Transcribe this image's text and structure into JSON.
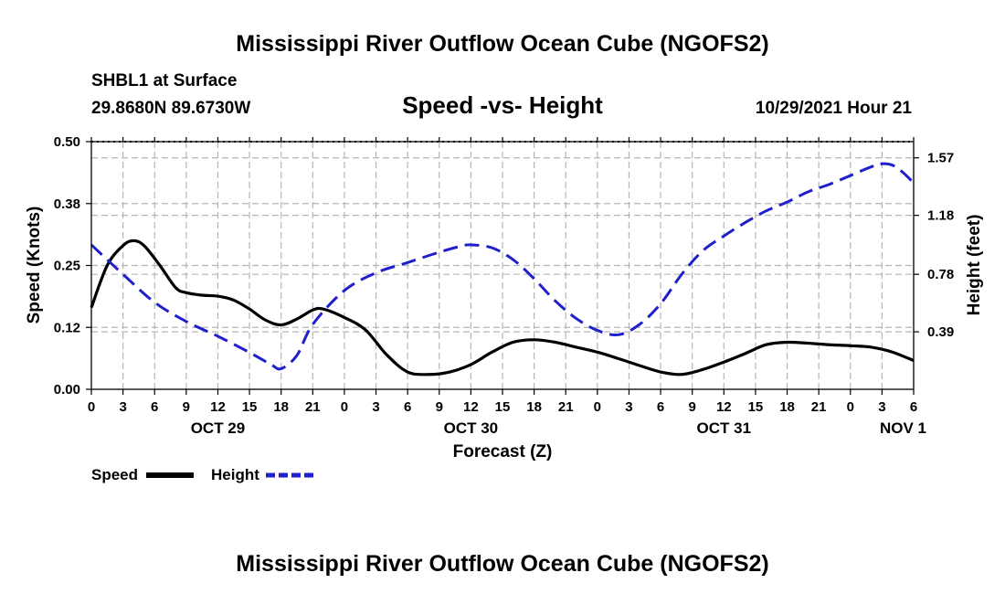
{
  "header": {
    "title": "Mississippi River Outflow Ocean Cube (NGOFS2)",
    "station": "SHBL1 at Surface",
    "coords": "29.8680N  89.6730W",
    "subtitle": "Speed -vs- Height",
    "datetime": "10/29/2021 Hour 21"
  },
  "footer": {
    "title": "Mississippi River Outflow Ocean Cube (NGOFS2)"
  },
  "chart_data": {
    "type": "line",
    "title": "Speed -vs- Height",
    "xlabel": "Forecast (Z)",
    "ylabel": "Speed (Knots)",
    "y2label": "Height (feet)",
    "x_range_hours": [
      0,
      78
    ],
    "x_tick_step_hours": 3,
    "x_tick_labels": [
      "0",
      "3",
      "6",
      "9",
      "12",
      "15",
      "18",
      "21",
      "0",
      "3",
      "6",
      "9",
      "12",
      "15",
      "18",
      "21",
      "0",
      "3",
      "6",
      "9",
      "12",
      "15",
      "18",
      "21",
      "0",
      "3",
      "6"
    ],
    "date_labels": [
      {
        "label": "OCT 29",
        "hour": 12
      },
      {
        "label": "OCT 30",
        "hour": 36
      },
      {
        "label": "OCT 31",
        "hour": 60
      },
      {
        "label": "NOV 1",
        "hour": 77
      }
    ],
    "ylim": [
      0,
      0.5
    ],
    "y_ticks": [
      0.0,
      0.125,
      0.25,
      0.375,
      0.5
    ],
    "y_tick_labels": [
      "0.00",
      "0.12",
      "0.25",
      "0.38",
      "0.50"
    ],
    "y2lim": [
      0,
      1.68
    ],
    "y2_ticks": [
      0.39,
      0.78,
      1.18,
      1.57
    ],
    "y2_tick_labels": [
      "0.39",
      "0.78",
      "1.18",
      "1.57"
    ],
    "grid": true,
    "series": [
      {
        "name": "Speed",
        "axis": "left",
        "color": "#000000",
        "dash": "solid",
        "x": [
          0,
          1.5,
          3,
          4,
          5,
          6.5,
          8,
          9,
          10.5,
          12,
          13.5,
          15,
          16.5,
          18,
          19.5,
          21,
          22,
          24,
          26,
          28,
          30,
          32,
          34,
          36,
          38,
          40,
          42,
          44,
          46,
          48,
          50,
          52,
          54,
          56,
          58,
          60,
          62,
          64,
          66,
          68,
          70,
          72,
          74,
          76,
          78
        ],
        "y": [
          0.165,
          0.25,
          0.29,
          0.3,
          0.29,
          0.25,
          0.205,
          0.195,
          0.19,
          0.188,
          0.18,
          0.162,
          0.14,
          0.13,
          0.142,
          0.16,
          0.162,
          0.145,
          0.12,
          0.07,
          0.035,
          0.03,
          0.035,
          0.05,
          0.075,
          0.095,
          0.1,
          0.095,
          0.085,
          0.075,
          0.062,
          0.048,
          0.035,
          0.03,
          0.04,
          0.055,
          0.072,
          0.09,
          0.095,
          0.093,
          0.09,
          0.088,
          0.085,
          0.075,
          0.058
        ]
      },
      {
        "name": "Height",
        "axis": "right",
        "color": "#1f1fcc",
        "dash": "dashed",
        "x": [
          0,
          3,
          6,
          9,
          12,
          15,
          17,
          18,
          19.5,
          21,
          24,
          27,
          30,
          33,
          35,
          36,
          38,
          40,
          42,
          44,
          46,
          48,
          50,
          52,
          54,
          56,
          58,
          60,
          62,
          64,
          66,
          68,
          70,
          72,
          74,
          75,
          76,
          77,
          78
        ],
        "y": [
          0.98,
          0.78,
          0.59,
          0.46,
          0.36,
          0.25,
          0.17,
          0.14,
          0.23,
          0.44,
          0.67,
          0.79,
          0.86,
          0.93,
          0.97,
          0.98,
          0.96,
          0.88,
          0.75,
          0.6,
          0.48,
          0.4,
          0.37,
          0.44,
          0.58,
          0.78,
          0.94,
          1.04,
          1.13,
          1.21,
          1.27,
          1.34,
          1.39,
          1.45,
          1.51,
          1.53,
          1.52,
          1.47,
          1.4
        ]
      }
    ],
    "legend": {
      "placement": "bottom-left",
      "entries": [
        {
          "label": "Speed",
          "color": "#000000",
          "dash": "solid"
        },
        {
          "label": "Height",
          "color": "#1f1fcc",
          "dash": "dashed"
        }
      ]
    }
  }
}
